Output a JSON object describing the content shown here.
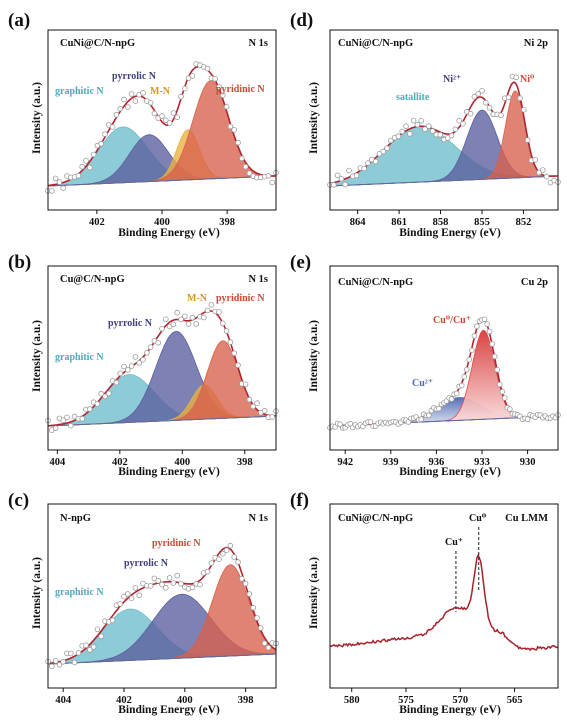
{
  "chart_data": [
    {
      "type": "line",
      "label": "(a)",
      "title": "CuNi@C/N-npG",
      "tag": "N 1s",
      "xlabel": "Binding Energy (eV)",
      "ylabel": "Intensity (a.u.)",
      "xlim": [
        403.5,
        396.5
      ],
      "reversed_x": true,
      "xticks": [
        402,
        400,
        398
      ],
      "peaks": [
        {
          "name": "graphitic N",
          "center": 401.2,
          "amp": 0.5,
          "sigma": 0.75,
          "color": "#6dbccb"
        },
        {
          "name": "pyrrolic N",
          "center": 400.4,
          "amp": 0.42,
          "sigma": 0.6,
          "color": "#5a5e9e"
        },
        {
          "name": "M-N",
          "center": 399.2,
          "amp": 0.45,
          "sigma": 0.35,
          "color": "#e8b13f"
        },
        {
          "name": "pyridinic N",
          "center": 398.5,
          "amp": 0.88,
          "sigma": 0.55,
          "color": "#d9604c"
        }
      ]
    },
    {
      "type": "line",
      "label": "(b)",
      "title": "Cu@C/N-npG",
      "tag": "N 1s",
      "xlabel": "Binding Energy (eV)",
      "ylabel": "Intensity (a.u.)",
      "xlim": [
        404.3,
        397.0
      ],
      "reversed_x": true,
      "xticks": [
        404,
        402,
        400,
        398
      ],
      "peaks": [
        {
          "name": "graphitic N",
          "center": 401.7,
          "amp": 0.42,
          "sigma": 0.8,
          "color": "#6dbccb"
        },
        {
          "name": "pyrrolic N",
          "center": 400.2,
          "amp": 0.78,
          "sigma": 0.65,
          "color": "#5a5e9e"
        },
        {
          "name": "M-N",
          "center": 399.3,
          "amp": 0.3,
          "sigma": 0.4,
          "color": "#e8b13f"
        },
        {
          "name": "pyridinic N",
          "center": 398.7,
          "amp": 0.68,
          "sigma": 0.5,
          "color": "#d9604c"
        }
      ]
    },
    {
      "type": "line",
      "label": "(c)",
      "title": "N-npG",
      "tag": "N 1s",
      "xlabel": "Binding Energy (eV)",
      "ylabel": "Intensity (a.u.)",
      "xlim": [
        404.5,
        397.0
      ],
      "reversed_x": true,
      "xticks": [
        404,
        402,
        400,
        398
      ],
      "peaks": [
        {
          "name": "graphitic N",
          "center": 401.8,
          "amp": 0.45,
          "sigma": 0.9,
          "color": "#6dbccb"
        },
        {
          "name": "pyrrolic N",
          "center": 400.1,
          "amp": 0.56,
          "sigma": 0.95,
          "color": "#5a5e9e"
        },
        {
          "name": "pyridinic N",
          "center": 398.5,
          "amp": 0.8,
          "sigma": 0.6,
          "color": "#d9604c"
        }
      ]
    },
    {
      "type": "line",
      "label": "(d)",
      "title": "CuNi@C/N-npG",
      "tag": "Ni 2p",
      "xlabel": "Binding Energy (eV)",
      "ylabel": "Intensity (a.u.)",
      "xlim": [
        866.0,
        849.5
      ],
      "reversed_x": true,
      "xticks": [
        864,
        861,
        858,
        855,
        852
      ],
      "peaks": [
        {
          "name": "satallite",
          "center": 859.5,
          "amp": 0.5,
          "sigma": 2.6,
          "color": "#6dbccb"
        },
        {
          "name": "Ni²⁺",
          "center": 855.0,
          "amp": 0.62,
          "sigma": 1.1,
          "color": "#5a5e9e"
        },
        {
          "name": "Ni⁰",
          "center": 852.6,
          "amp": 0.78,
          "sigma": 0.7,
          "color": "#d9604c"
        }
      ]
    },
    {
      "type": "line",
      "label": "(e)",
      "title": "CuNi@C/N-npG",
      "tag": "Cu 2p",
      "xlabel": "Binding Energy (eV)",
      "ylabel": "Intensity (a.u.)",
      "xlim": [
        943.0,
        928.0
      ],
      "reversed_x": true,
      "xticks": [
        942,
        939,
        936,
        933,
        930
      ],
      "peaks": [
        {
          "name": "Cu²⁺",
          "center": 934.5,
          "amp": 0.2,
          "sigma": 1.4,
          "color": "#4f6ab0"
        },
        {
          "name": "Cu⁰/Cu⁺",
          "center": 932.9,
          "amp": 0.78,
          "sigma": 0.75,
          "color": "#de4b4b"
        }
      ]
    },
    {
      "type": "line",
      "label": "(f)",
      "title": "CuNi@C/N-npG",
      "tag": "Cu LMM",
      "xlabel": "Binding Energy (eV)",
      "ylabel": "Intensity (a.u.)",
      "xlim": [
        582.0,
        561.0
      ],
      "reversed_x": true,
      "xticks": [
        580,
        575,
        570,
        565
      ],
      "markers": [
        {
          "name": "Cu⁺",
          "x": 570.4
        },
        {
          "name": "Cu⁰",
          "x": 568.3
        }
      ]
    }
  ]
}
